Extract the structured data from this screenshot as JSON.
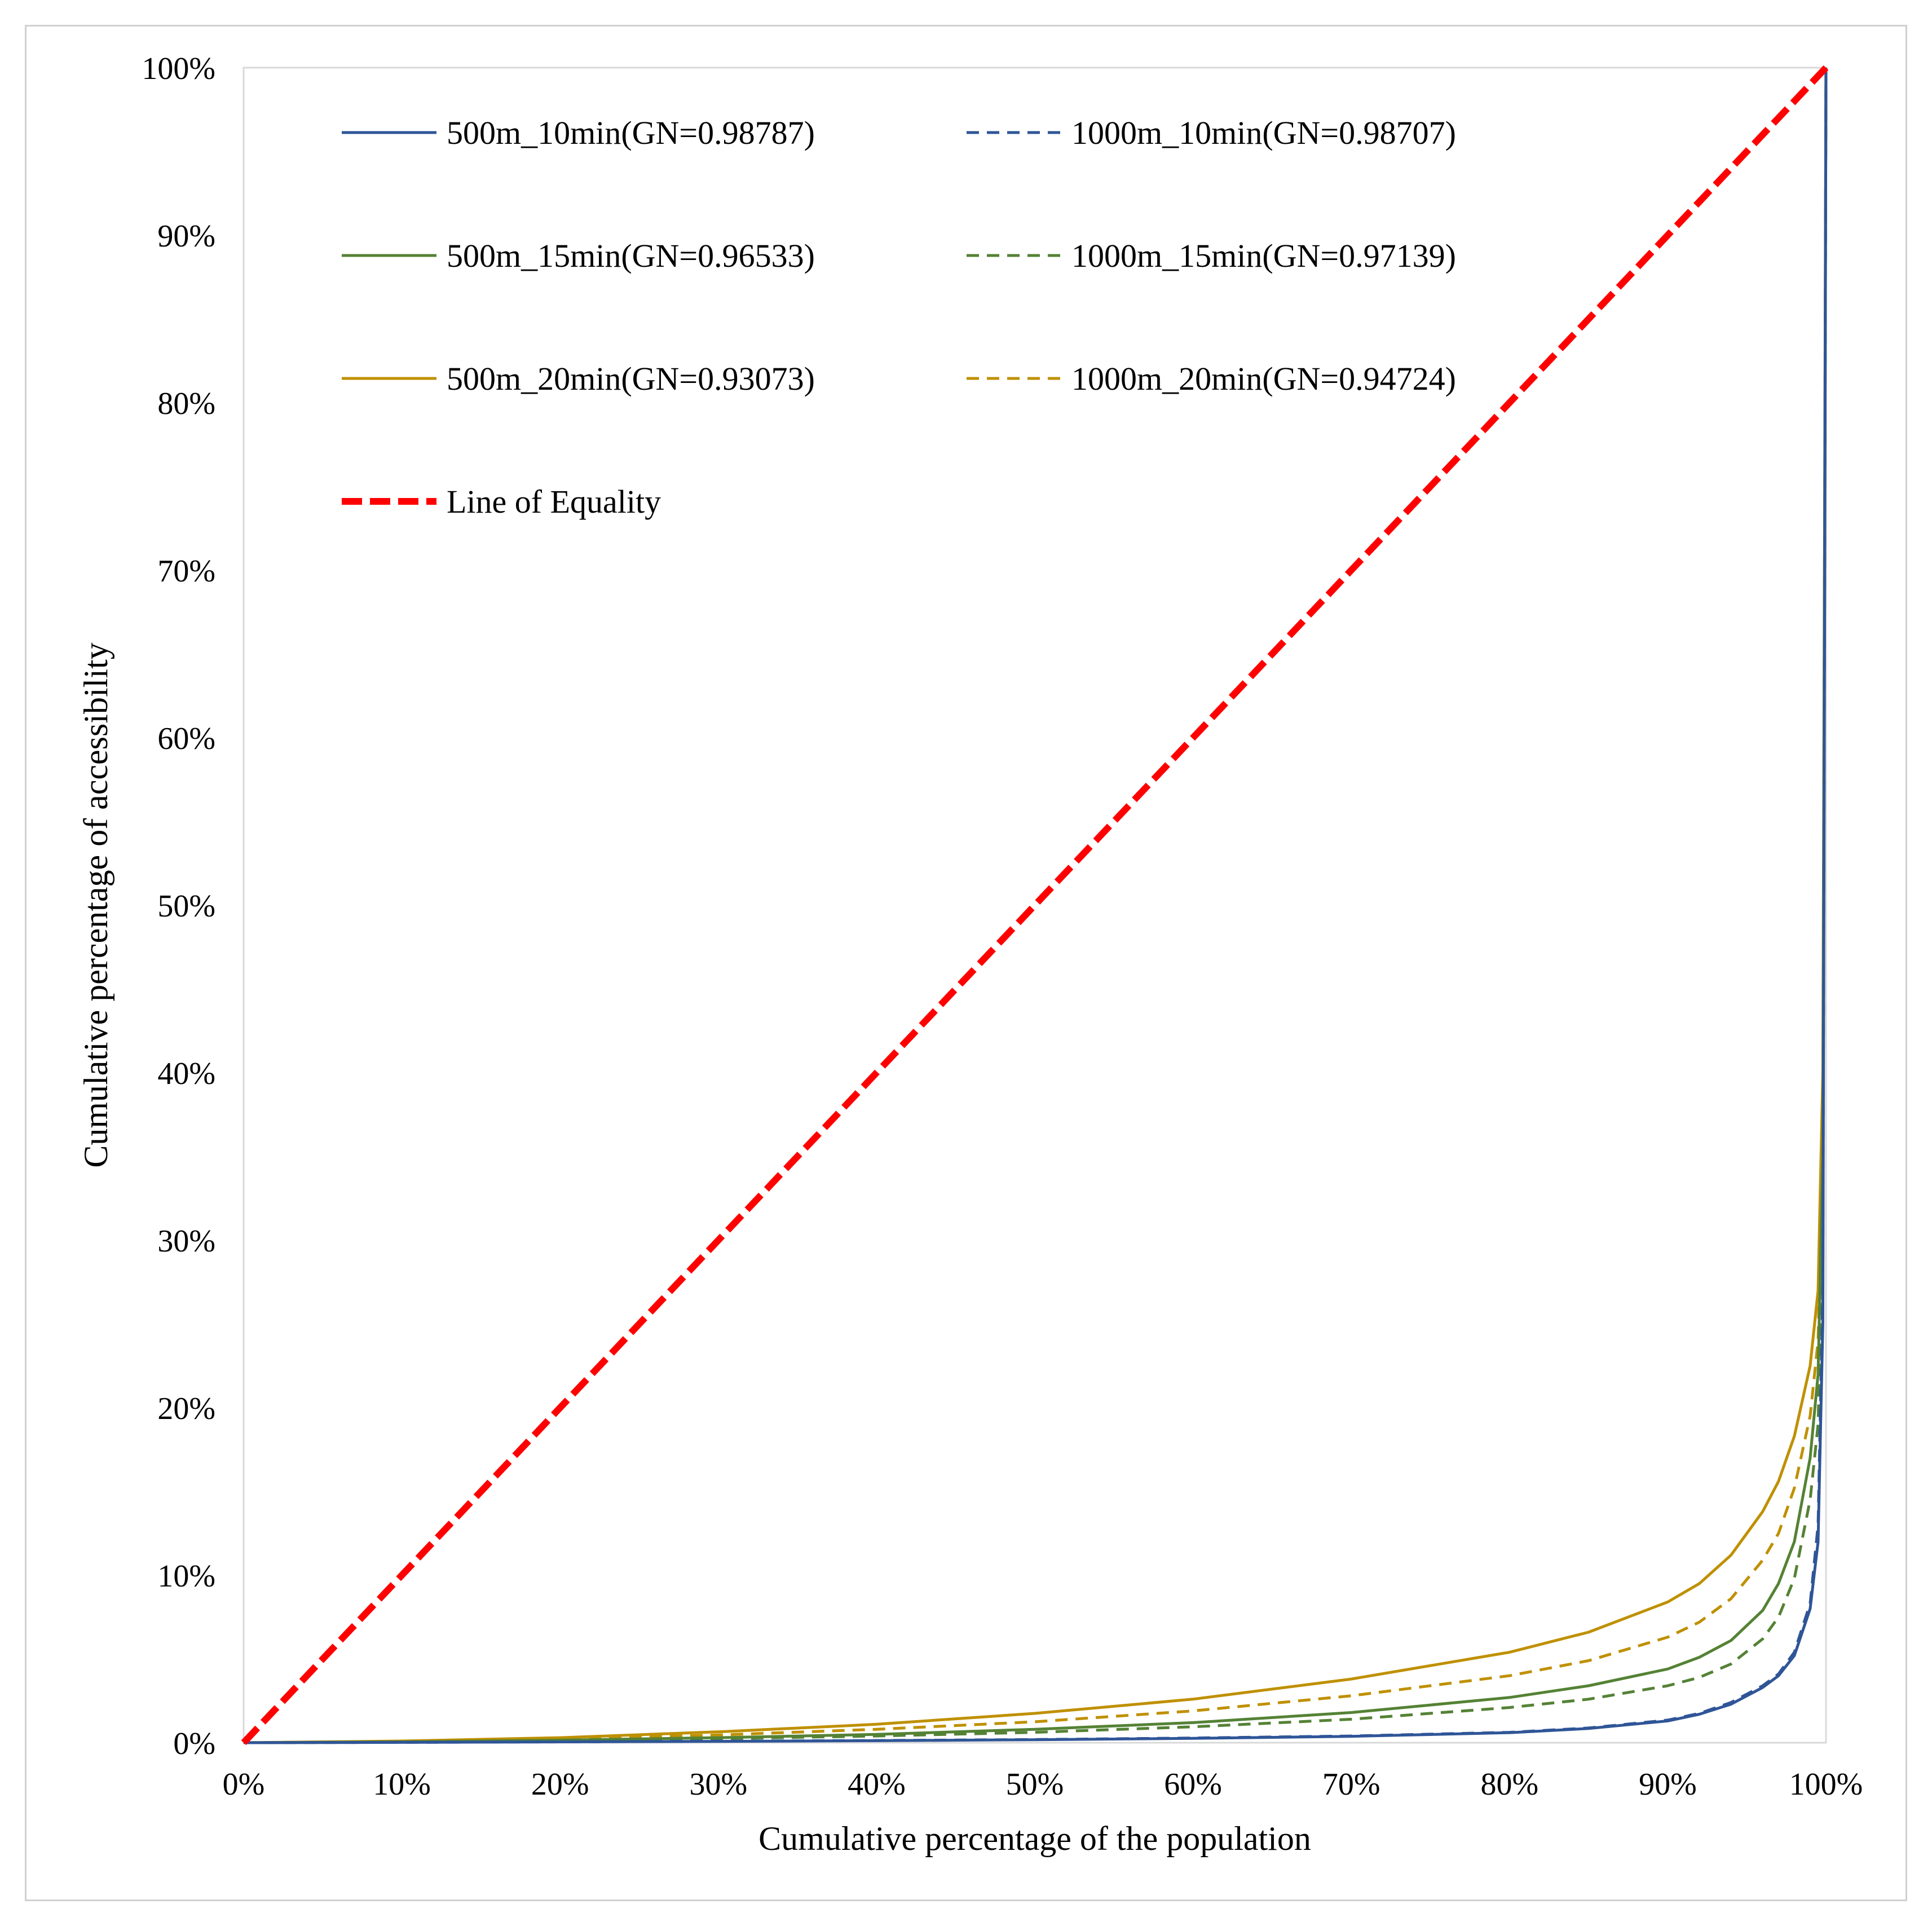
{
  "chart_data": {
    "type": "line",
    "title": "",
    "xlabel": "Cumulative percentage of the population",
    "ylabel": "Cumulative percentage of accessibility",
    "xlim": [
      0,
      100
    ],
    "ylim": [
      0,
      100
    ],
    "x_tick_labels": [
      "0%",
      "10%",
      "20%",
      "30%",
      "40%",
      "50%",
      "60%",
      "70%",
      "80%",
      "90%",
      "100%"
    ],
    "y_tick_labels": [
      "0%",
      "10%",
      "20%",
      "30%",
      "40%",
      "50%",
      "60%",
      "70%",
      "80%",
      "90%",
      "100%"
    ],
    "grid": false,
    "legend_position": "top-left",
    "x": [
      0,
      10,
      20,
      30,
      40,
      50,
      60,
      70,
      80,
      85,
      90,
      92,
      94,
      96,
      97,
      98,
      99,
      99.5,
      99.8,
      100
    ],
    "series": [
      {
        "name": "500m_10min(GN=0.98787)",
        "color": "#2f5597",
        "style": "solid",
        "values": [
          0,
          0.02,
          0.05,
          0.08,
          0.12,
          0.18,
          0.26,
          0.38,
          0.6,
          0.85,
          1.3,
          1.7,
          2.3,
          3.3,
          4.0,
          5.2,
          8.0,
          12,
          25,
          100
        ]
      },
      {
        "name": "1000m_10min(GN=0.98707)",
        "color": "#2f5597",
        "style": "dashed",
        "values": [
          0,
          0.02,
          0.05,
          0.09,
          0.13,
          0.19,
          0.28,
          0.4,
          0.62,
          0.88,
          1.35,
          1.75,
          2.4,
          3.4,
          4.1,
          5.4,
          8.3,
          13,
          27,
          100
        ]
      },
      {
        "name": "500m_15min(GN=0.96533)",
        "color": "#548235",
        "style": "solid",
        "values": [
          0,
          0.05,
          0.15,
          0.3,
          0.5,
          0.8,
          1.2,
          1.8,
          2.7,
          3.4,
          4.4,
          5.1,
          6.1,
          7.9,
          9.5,
          12,
          17,
          22,
          35,
          100
        ]
      },
      {
        "name": "1000m_15min(GN=0.97139)",
        "color": "#548235",
        "style": "dashed",
        "values": [
          0,
          0.04,
          0.12,
          0.24,
          0.4,
          0.62,
          0.95,
          1.4,
          2.1,
          2.6,
          3.4,
          3.9,
          4.7,
          6.2,
          7.5,
          9.8,
          14.5,
          19,
          31,
          100
        ]
      },
      {
        "name": "500m_20min(GN=0.93073)",
        "color": "#bf9000",
        "style": "solid",
        "values": [
          0,
          0.1,
          0.3,
          0.65,
          1.1,
          1.75,
          2.6,
          3.8,
          5.4,
          6.6,
          8.4,
          9.5,
          11.2,
          13.8,
          15.6,
          18.3,
          22.5,
          27,
          40,
          100
        ]
      },
      {
        "name": "1000m_20min(GN=0.94724)",
        "color": "#bf9000",
        "style": "dashed",
        "values": [
          0,
          0.07,
          0.22,
          0.46,
          0.8,
          1.25,
          1.9,
          2.8,
          4.0,
          4.9,
          6.3,
          7.2,
          8.6,
          10.9,
          12.5,
          15.2,
          19.5,
          24,
          36,
          100
        ]
      },
      {
        "name": "Line of Equality",
        "color": "#ff0000",
        "style": "dashed-thick",
        "values": [
          0,
          10,
          20,
          30,
          40,
          50,
          60,
          70,
          80,
          85,
          90,
          92,
          94,
          96,
          97,
          98,
          99,
          99.5,
          99.8,
          100
        ]
      }
    ]
  }
}
